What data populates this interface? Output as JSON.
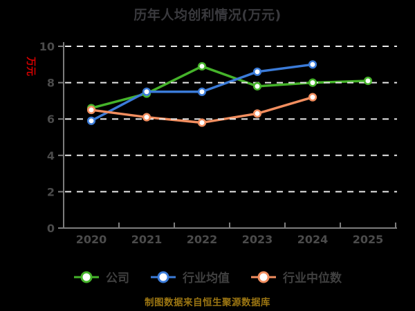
{
  "title": "历年人均创利情况(万元)",
  "y_axis_label": "万元",
  "caption": "制图数据来自恒生聚源数据库",
  "colors": {
    "background": "#000000",
    "axis": "#7d7d7d",
    "grid": "#e9e9e9",
    "tick_text": "#4b4b4b",
    "title_text": "#3a3a3e",
    "legend_text": "#404040",
    "y_unit_red": "#d40000",
    "caption_gold": "#9b7512",
    "series_company": "#45b32a",
    "series_industry_avg": "#3b7bd8",
    "series_industry_median": "#f28e5f"
  },
  "chart_data": {
    "type": "line",
    "title": "历年人均创利情况(万元)",
    "ylabel": "万元",
    "x": [
      "2020",
      "2021",
      "2022",
      "2023",
      "2024",
      "2025"
    ],
    "series": [
      {
        "name": "公司",
        "color": "#45b32a",
        "values": [
          6.6,
          7.4,
          8.9,
          7.8,
          8.0,
          8.1
        ]
      },
      {
        "name": "行业均值",
        "color": "#3b7bd8",
        "values": [
          5.9,
          7.5,
          7.5,
          8.6,
          9.0,
          null
        ]
      },
      {
        "name": "行业中位数",
        "color": "#f28e5f",
        "values": [
          6.5,
          6.1,
          5.8,
          6.3,
          7.2,
          null
        ]
      }
    ],
    "ylim": [
      0,
      10
    ],
    "yticks": [
      0,
      2,
      4,
      6,
      8,
      10
    ],
    "grid": true,
    "grid_style": "dashed",
    "legend_position": "bottom"
  }
}
